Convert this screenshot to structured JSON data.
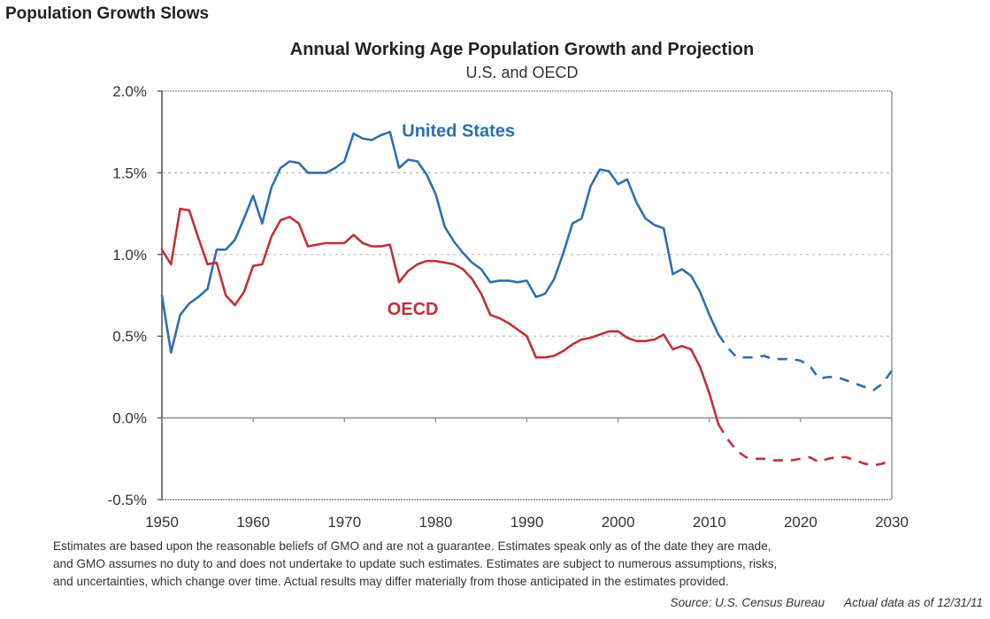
{
  "page_title": "Population Growth Slows",
  "chart_data": {
    "type": "line",
    "title": "Annual Working Age Population Growth and Projection",
    "subtitle": "U.S. and OECD",
    "xlabel": "",
    "ylabel": "",
    "xlim": [
      1950,
      2030
    ],
    "ylim": [
      -0.5,
      2.0
    ],
    "x_ticks": [
      1950,
      1960,
      1970,
      1980,
      1990,
      2000,
      2010,
      2020,
      2030
    ],
    "x_tick_labels": [
      "1950",
      "1960",
      "1970",
      "1980",
      "1990",
      "2000",
      "2010",
      "2020",
      "2030"
    ],
    "y_ticks": [
      2.0,
      1.5,
      1.0,
      0.5,
      0.0,
      -0.5
    ],
    "y_tick_labels": [
      "2.0%",
      "1.5%",
      "1.0%",
      "0.5%",
      "0.0%",
      "-0.5%"
    ],
    "grid": "horizontal dotted",
    "legend": "inline labels",
    "series": [
      {
        "name": "United States",
        "color": "#2e6fb0",
        "actual": {
          "x": [
            1950,
            1951,
            1952,
            1953,
            1954,
            1955,
            1956,
            1957,
            1958,
            1959,
            1960,
            1961,
            1962,
            1963,
            1964,
            1965,
            1966,
            1967,
            1968,
            1969,
            1970,
            1971,
            1972,
            1973,
            1974,
            1975,
            1976,
            1977,
            1978,
            1979,
            1980,
            1981,
            1982,
            1983,
            1984,
            1985,
            1986,
            1987,
            1988,
            1989,
            1990,
            1991,
            1992,
            1993,
            1994,
            1995,
            1996,
            1997,
            1998,
            1999,
            2000,
            2001,
            2002,
            2003,
            2004,
            2005,
            2006,
            2007,
            2008,
            2009,
            2010,
            2011
          ],
          "y": [
            0.75,
            0.4,
            0.63,
            0.7,
            0.74,
            0.79,
            1.03,
            1.03,
            1.09,
            1.22,
            1.36,
            1.19,
            1.41,
            1.53,
            1.57,
            1.56,
            1.5,
            1.5,
            1.5,
            1.53,
            1.57,
            1.74,
            1.71,
            1.7,
            1.73,
            1.75,
            1.53,
            1.58,
            1.57,
            1.49,
            1.37,
            1.17,
            1.08,
            1.01,
            0.95,
            0.91,
            0.83,
            0.84,
            0.84,
            0.83,
            0.84,
            0.74,
            0.76,
            0.85,
            1.01,
            1.19,
            1.22,
            1.42,
            1.52,
            1.51,
            1.43,
            1.46,
            1.32,
            1.22,
            1.18,
            1.16,
            0.88,
            0.91,
            0.87,
            0.77,
            0.63,
            0.51
          ]
        },
        "projection": {
          "x": [
            2011,
            2012,
            2013,
            2014,
            2015,
            2016,
            2017,
            2018,
            2019,
            2020,
            2021,
            2022,
            2023,
            2024,
            2025,
            2026,
            2027,
            2028,
            2029,
            2030
          ],
          "y": [
            0.51,
            0.43,
            0.37,
            0.37,
            0.37,
            0.38,
            0.36,
            0.36,
            0.36,
            0.35,
            0.32,
            0.24,
            0.25,
            0.25,
            0.23,
            0.21,
            0.19,
            0.17,
            0.21,
            0.29
          ]
        }
      },
      {
        "name": "OECD",
        "color": "#c0313a",
        "actual": {
          "x": [
            1950,
            1951,
            1952,
            1953,
            1954,
            1955,
            1956,
            1957,
            1958,
            1959,
            1960,
            1961,
            1962,
            1963,
            1964,
            1965,
            1966,
            1967,
            1968,
            1969,
            1970,
            1971,
            1972,
            1973,
            1974,
            1975,
            1976,
            1977,
            1978,
            1979,
            1980,
            1981,
            1982,
            1983,
            1984,
            1985,
            1986,
            1987,
            1988,
            1989,
            1990,
            1991,
            1992,
            1993,
            1994,
            1995,
            1996,
            1997,
            1998,
            1999,
            2000,
            2001,
            2002,
            2003,
            2004,
            2005,
            2006,
            2007,
            2008,
            2009,
            2010,
            2011
          ],
          "y": [
            1.03,
            0.94,
            1.28,
            1.27,
            1.1,
            0.94,
            0.95,
            0.75,
            0.69,
            0.77,
            0.93,
            0.94,
            1.11,
            1.21,
            1.23,
            1.19,
            1.05,
            1.06,
            1.07,
            1.07,
            1.07,
            1.12,
            1.07,
            1.05,
            1.05,
            1.06,
            0.83,
            0.9,
            0.94,
            0.96,
            0.96,
            0.95,
            0.94,
            0.91,
            0.85,
            0.76,
            0.63,
            0.61,
            0.58,
            0.54,
            0.5,
            0.37,
            0.37,
            0.38,
            0.41,
            0.45,
            0.48,
            0.49,
            0.51,
            0.53,
            0.53,
            0.49,
            0.47,
            0.47,
            0.48,
            0.51,
            0.42,
            0.44,
            0.42,
            0.31,
            0.15,
            -0.04
          ]
        },
        "projection": {
          "x": [
            2011,
            2012,
            2013,
            2014,
            2015,
            2016,
            2017,
            2018,
            2019,
            2020,
            2021,
            2022,
            2023,
            2024,
            2025,
            2026,
            2027,
            2028,
            2029,
            2030
          ],
          "y": [
            -0.04,
            -0.13,
            -0.2,
            -0.24,
            -0.25,
            -0.25,
            -0.26,
            -0.26,
            -0.26,
            -0.25,
            -0.24,
            -0.27,
            -0.25,
            -0.24,
            -0.24,
            -0.26,
            -0.28,
            -0.29,
            -0.28,
            -0.25
          ]
        }
      }
    ],
    "annotations": [
      {
        "text": "United States",
        "color": "#2e6fb0",
        "x": 1982.5,
        "y": 1.72
      },
      {
        "text": "OECD",
        "color": "#c0313a",
        "x": 1977.5,
        "y": 0.63
      }
    ]
  },
  "footer": {
    "disclaimer_lines": [
      "Estimates are based upon the reasonable beliefs of GMO and are not a guarantee.  Estimates speak only as of the date they are made,",
      "and GMO assumes no duty to and does not undertake to update such estimates. Estimates are subject to numerous assumptions, risks,",
      "and uncertainties, which change over time.  Actual results may differ materially from those anticipated in the estimates provided."
    ],
    "source": "Source: U.S. Census Bureau",
    "as_of": "Actual data as of 12/31/11"
  }
}
